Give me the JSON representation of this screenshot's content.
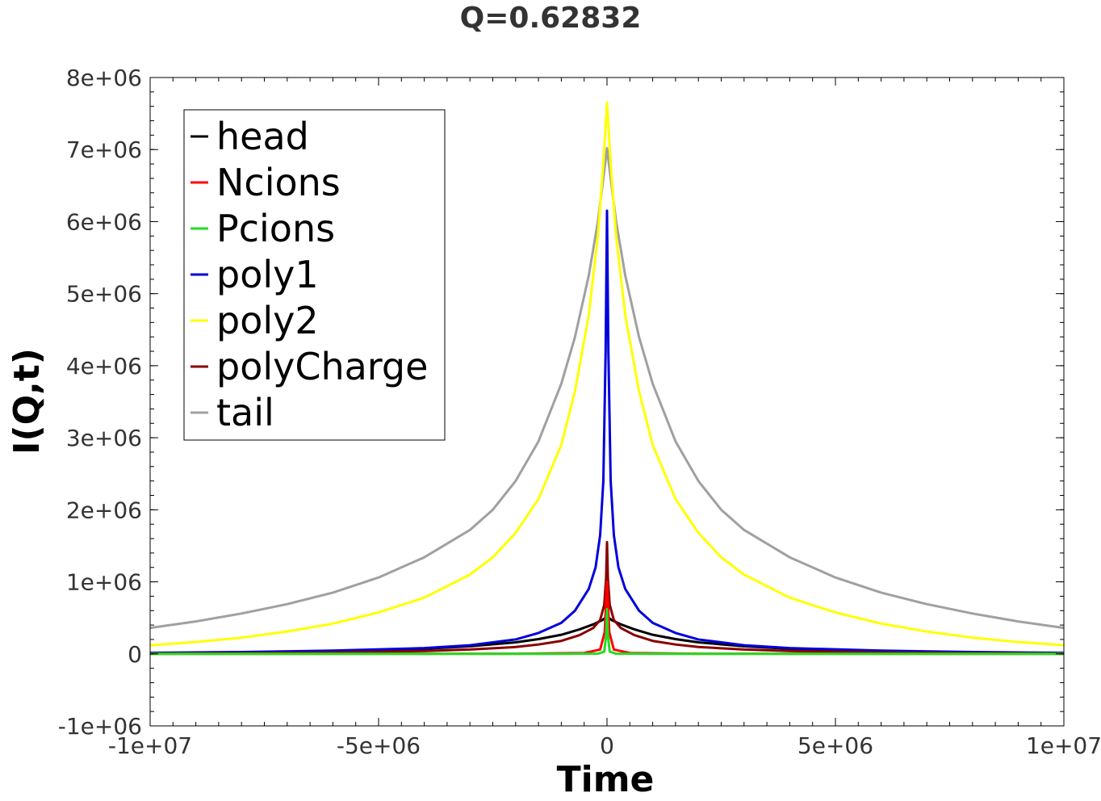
{
  "chart_data": {
    "type": "line",
    "title": "Q=0.62832",
    "xlabel": "Time",
    "ylabel": "I(Q,t)",
    "xlim": [
      -10000000,
      10000000
    ],
    "ylim": [
      -1000000,
      8000000
    ],
    "x_ticks": [
      "-1e+07",
      "-5e+06",
      "0",
      "5e+06",
      "1e+07"
    ],
    "x_tick_values": [
      -10000000,
      -5000000,
      0,
      5000000,
      10000000
    ],
    "y_ticks": [
      "-1e+06",
      "0",
      "1e+06",
      "2e+06",
      "3e+06",
      "4e+06",
      "5e+06",
      "6e+06",
      "7e+06",
      "8e+06"
    ],
    "y_tick_values": [
      -1000000,
      0,
      1000000,
      2000000,
      3000000,
      4000000,
      5000000,
      6000000,
      7000000,
      8000000
    ],
    "grid": false,
    "legend_position": "top-left",
    "series": [
      {
        "name": "head",
        "color": "#000000",
        "x": [
          -10000000,
          -8000000,
          -6000000,
          -4000000,
          -3000000,
          -2000000,
          -1500000,
          -1000000,
          -600000,
          -300000,
          -100000,
          0,
          100000,
          300000,
          600000,
          1000000,
          1500000,
          2000000,
          3000000,
          4000000,
          6000000,
          8000000,
          10000000
        ],
        "y": [
          10000,
          18000,
          35000,
          70000,
          105000,
          160000,
          205000,
          265000,
          340000,
          410000,
          470000,
          520000,
          470000,
          410000,
          340000,
          265000,
          205000,
          160000,
          105000,
          70000,
          35000,
          18000,
          10000
        ]
      },
      {
        "name": "Ncions",
        "color": "#ff0000",
        "x": [
          -10000000,
          -2000000,
          -500000,
          -150000,
          -50000,
          0,
          50000,
          150000,
          500000,
          2000000,
          10000000
        ],
        "y": [
          0,
          2000,
          12000,
          60000,
          300000,
          1000000,
          300000,
          60000,
          12000,
          2000,
          0
        ]
      },
      {
        "name": "Pcions",
        "color": "#22dd22",
        "x": [
          -10000000,
          -1000000,
          -200000,
          -60000,
          -20000,
          0,
          20000,
          60000,
          200000,
          1000000,
          10000000
        ],
        "y": [
          0,
          0,
          3000,
          30000,
          250000,
          620000,
          250000,
          30000,
          3000,
          0,
          0
        ]
      },
      {
        "name": "poly1",
        "color": "#0000dd",
        "x": [
          -10000000,
          -8000000,
          -6000000,
          -4000000,
          -3000000,
          -2000000,
          -1500000,
          -1000000,
          -700000,
          -400000,
          -250000,
          -150000,
          -80000,
          -30000,
          0,
          30000,
          80000,
          150000,
          250000,
          400000,
          700000,
          1000000,
          1500000,
          2000000,
          3000000,
          4000000,
          6000000,
          8000000,
          10000000
        ],
        "y": [
          15000,
          25000,
          45000,
          80000,
          120000,
          200000,
          290000,
          430000,
          600000,
          900000,
          1200000,
          1650000,
          2400000,
          4200000,
          6150000,
          4200000,
          2400000,
          1650000,
          1200000,
          900000,
          600000,
          430000,
          290000,
          200000,
          120000,
          80000,
          45000,
          25000,
          15000
        ]
      },
      {
        "name": "poly2",
        "color": "#ffff00",
        "x": [
          -10000000,
          -9000000,
          -8000000,
          -7000000,
          -6000000,
          -5000000,
          -4000000,
          -3000000,
          -2500000,
          -2000000,
          -1500000,
          -1000000,
          -700000,
          -400000,
          -200000,
          -80000,
          0,
          80000,
          200000,
          400000,
          700000,
          1000000,
          1500000,
          2000000,
          2500000,
          3000000,
          4000000,
          5000000,
          6000000,
          7000000,
          8000000,
          9000000,
          10000000
        ],
        "y": [
          120000,
          165000,
          225000,
          310000,
          420000,
          575000,
          780000,
          1100000,
          1340000,
          1680000,
          2150000,
          2900000,
          3650000,
          4700000,
          5800000,
          6800000,
          7650000,
          6800000,
          5800000,
          4700000,
          3650000,
          2900000,
          2150000,
          1680000,
          1340000,
          1100000,
          780000,
          575000,
          420000,
          310000,
          225000,
          165000,
          120000
        ]
      },
      {
        "name": "polyCharge",
        "color": "#880000",
        "x": [
          -10000000,
          -8000000,
          -6000000,
          -4000000,
          -3000000,
          -2000000,
          -1500000,
          -1000000,
          -600000,
          -300000,
          -150000,
          -60000,
          -20000,
          0,
          20000,
          60000,
          150000,
          300000,
          600000,
          1000000,
          1500000,
          2000000,
          3000000,
          4000000,
          6000000,
          8000000,
          10000000
        ],
        "y": [
          5000,
          10000,
          20000,
          40000,
          60000,
          95000,
          130000,
          180000,
          260000,
          360000,
          470000,
          680000,
          1050000,
          1550000,
          1050000,
          680000,
          470000,
          360000,
          260000,
          180000,
          130000,
          95000,
          60000,
          40000,
          20000,
          10000,
          5000
        ]
      },
      {
        "name": "tail",
        "color": "#a0a0a0",
        "x": [
          -10000000,
          -9000000,
          -8000000,
          -7000000,
          -6000000,
          -5000000,
          -4000000,
          -3000000,
          -2500000,
          -2000000,
          -1500000,
          -1000000,
          -700000,
          -400000,
          -200000,
          -80000,
          0,
          80000,
          200000,
          400000,
          700000,
          1000000,
          1500000,
          2000000,
          2500000,
          3000000,
          4000000,
          5000000,
          6000000,
          7000000,
          8000000,
          9000000,
          10000000
        ],
        "y": [
          360000,
          450000,
          560000,
          690000,
          850000,
          1060000,
          1340000,
          1720000,
          2000000,
          2400000,
          2950000,
          3750000,
          4400000,
          5250000,
          6000000,
          6600000,
          7020000,
          6600000,
          6000000,
          5250000,
          4400000,
          3750000,
          2950000,
          2400000,
          2000000,
          1720000,
          1340000,
          1060000,
          850000,
          690000,
          560000,
          450000,
          360000
        ]
      }
    ]
  }
}
